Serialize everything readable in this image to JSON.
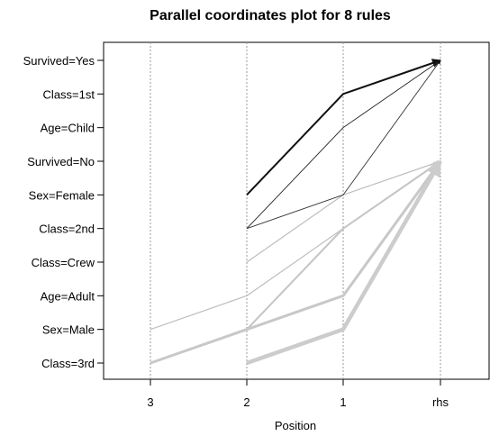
{
  "chart_data": {
    "type": "parallel-coordinates",
    "title": "Parallel coordinates plot for 8 rules",
    "xlabel": "Position",
    "x_ticks": [
      "3",
      "2",
      "1",
      "rhs"
    ],
    "y_categories": [
      "Class=3rd",
      "Sex=Male",
      "Age=Adult",
      "Class=Crew",
      "Class=2nd",
      "Sex=Female",
      "Survived=No",
      "Age=Child",
      "Class=1st",
      "Survived=Yes"
    ],
    "rules": [
      {
        "path": {
          "2": "Sex=Female",
          "1": "Class=1st",
          "rhs": "Survived=Yes"
        },
        "color": "#111111",
        "weight": 2.0
      },
      {
        "path": {
          "2": "Class=2nd",
          "1": "Age=Child",
          "rhs": "Survived=Yes"
        },
        "color": "#222222",
        "weight": 0.9
      },
      {
        "path": {
          "2": "Class=2nd",
          "1": "Sex=Female",
          "rhs": "Survived=Yes"
        },
        "color": "#333333",
        "weight": 0.9
      },
      {
        "path": {
          "2": "Class=Crew",
          "1": "Sex=Female",
          "rhs": "Survived=No"
        },
        "color": "#bdbdbd",
        "weight": 1.2
      },
      {
        "path": {
          "3": "Sex=Male",
          "2": "Age=Adult",
          "1": "Class=2nd",
          "rhs": "Survived=No"
        },
        "color": "#bdbdbd",
        "weight": 1.2
      },
      {
        "path": {
          "2": "Sex=Male",
          "1": "Class=2nd",
          "rhs": "Survived=No"
        },
        "color": "#c4c4c4",
        "weight": 2.0
      },
      {
        "path": {
          "3": "Class=3rd",
          "2": "Sex=Male",
          "1": "Age=Adult",
          "rhs": "Survived=No"
        },
        "color": "#c8c8c8",
        "weight": 3.0
      },
      {
        "path": {
          "2": "Class=3rd",
          "1": "Sex=Male",
          "rhs": "Survived=No"
        },
        "color": "#cccccc",
        "weight": 4.5
      }
    ]
  }
}
